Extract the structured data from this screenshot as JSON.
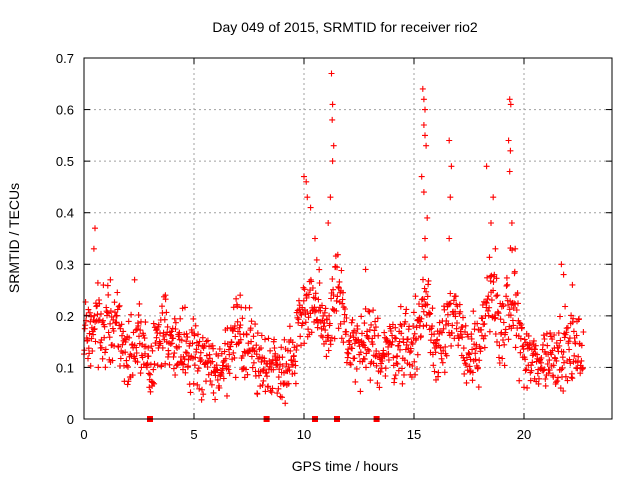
{
  "chart_data": {
    "type": "scatter",
    "title": "Day 049 of 2015, SRMTID for receiver rio2",
    "xlabel": "GPS time / hours",
    "ylabel": "SRMTID / TECUs",
    "xlim": [
      0,
      24
    ],
    "ylim": [
      0,
      0.7
    ],
    "x_ticks": [
      0,
      5,
      10,
      15,
      20
    ],
    "y_ticks": [
      0,
      0.1,
      0.2,
      0.3,
      0.4,
      0.5,
      0.6,
      0.7
    ],
    "x_tick_labels": [
      "0",
      "5",
      "10",
      "15",
      "20"
    ],
    "y_tick_labels": [
      "0",
      "0.1",
      "0.2",
      "0.3",
      "0.4",
      "0.5",
      "0.6",
      "0.7"
    ],
    "grid": true,
    "marker": "+",
    "color": "#ff0000",
    "series": [
      {
        "name": "SRMTID",
        "profile": [
          [
            0.0,
            0.16
          ],
          [
            0.5,
            0.19
          ],
          [
            1.0,
            0.17
          ],
          [
            1.5,
            0.2
          ],
          [
            2.0,
            0.11
          ],
          [
            2.5,
            0.16
          ],
          [
            3.0,
            0.1
          ],
          [
            3.5,
            0.17
          ],
          [
            4.0,
            0.15
          ],
          [
            4.5,
            0.14
          ],
          [
            5.0,
            0.12
          ],
          [
            5.5,
            0.12
          ],
          [
            6.0,
            0.09
          ],
          [
            6.5,
            0.11
          ],
          [
            7.0,
            0.16
          ],
          [
            7.5,
            0.15
          ],
          [
            8.0,
            0.1
          ],
          [
            8.5,
            0.11
          ],
          [
            9.0,
            0.1
          ],
          [
            9.5,
            0.12
          ],
          [
            10.0,
            0.23
          ],
          [
            10.5,
            0.22
          ],
          [
            11.0,
            0.15
          ],
          [
            11.5,
            0.27
          ],
          [
            12.0,
            0.14
          ],
          [
            12.5,
            0.13
          ],
          [
            13.0,
            0.14
          ],
          [
            13.5,
            0.13
          ],
          [
            14.0,
            0.14
          ],
          [
            14.5,
            0.15
          ],
          [
            15.0,
            0.14
          ],
          [
            15.5,
            0.24
          ],
          [
            16.0,
            0.13
          ],
          [
            16.5,
            0.2
          ],
          [
            17.0,
            0.17
          ],
          [
            17.5,
            0.13
          ],
          [
            18.0,
            0.13
          ],
          [
            18.5,
            0.25
          ],
          [
            19.0,
            0.17
          ],
          [
            19.5,
            0.24
          ],
          [
            20.0,
            0.12
          ],
          [
            20.5,
            0.11
          ],
          [
            21.0,
            0.12
          ],
          [
            21.5,
            0.13
          ],
          [
            22.0,
            0.14
          ],
          [
            22.5,
            0.13
          ]
        ],
        "spikes": [
          [
            0.5,
            0.37
          ],
          [
            0.45,
            0.33
          ],
          [
            1.2,
            0.27
          ],
          [
            2.3,
            0.27
          ],
          [
            3.7,
            0.24
          ],
          [
            7.1,
            0.24
          ],
          [
            10.0,
            0.47
          ],
          [
            10.1,
            0.46
          ],
          [
            10.15,
            0.43
          ],
          [
            10.3,
            0.41
          ],
          [
            10.5,
            0.35
          ],
          [
            11.25,
            0.67
          ],
          [
            11.3,
            0.61
          ],
          [
            11.28,
            0.58
          ],
          [
            11.35,
            0.53
          ],
          [
            11.3,
            0.5
          ],
          [
            11.2,
            0.43
          ],
          [
            11.1,
            0.38
          ],
          [
            12.8,
            0.29
          ],
          [
            15.4,
            0.64
          ],
          [
            15.45,
            0.62
          ],
          [
            15.5,
            0.6
          ],
          [
            15.45,
            0.57
          ],
          [
            15.5,
            0.55
          ],
          [
            15.55,
            0.53
          ],
          [
            15.35,
            0.47
          ],
          [
            15.45,
            0.44
          ],
          [
            15.6,
            0.39
          ],
          [
            15.5,
            0.35
          ],
          [
            16.6,
            0.54
          ],
          [
            16.7,
            0.49
          ],
          [
            16.65,
            0.43
          ],
          [
            16.6,
            0.35
          ],
          [
            18.3,
            0.49
          ],
          [
            18.6,
            0.43
          ],
          [
            18.5,
            0.38
          ],
          [
            18.7,
            0.33
          ],
          [
            19.35,
            0.62
          ],
          [
            19.4,
            0.61
          ],
          [
            19.3,
            0.54
          ],
          [
            19.38,
            0.52
          ],
          [
            19.35,
            0.48
          ],
          [
            19.45,
            0.38
          ],
          [
            19.6,
            0.33
          ],
          [
            21.7,
            0.3
          ],
          [
            21.8,
            0.28
          ],
          [
            22.2,
            0.26
          ]
        ]
      }
    ],
    "gap_markers_x": [
      3.0,
      8.3,
      10.5,
      11.5,
      13.3
    ]
  }
}
